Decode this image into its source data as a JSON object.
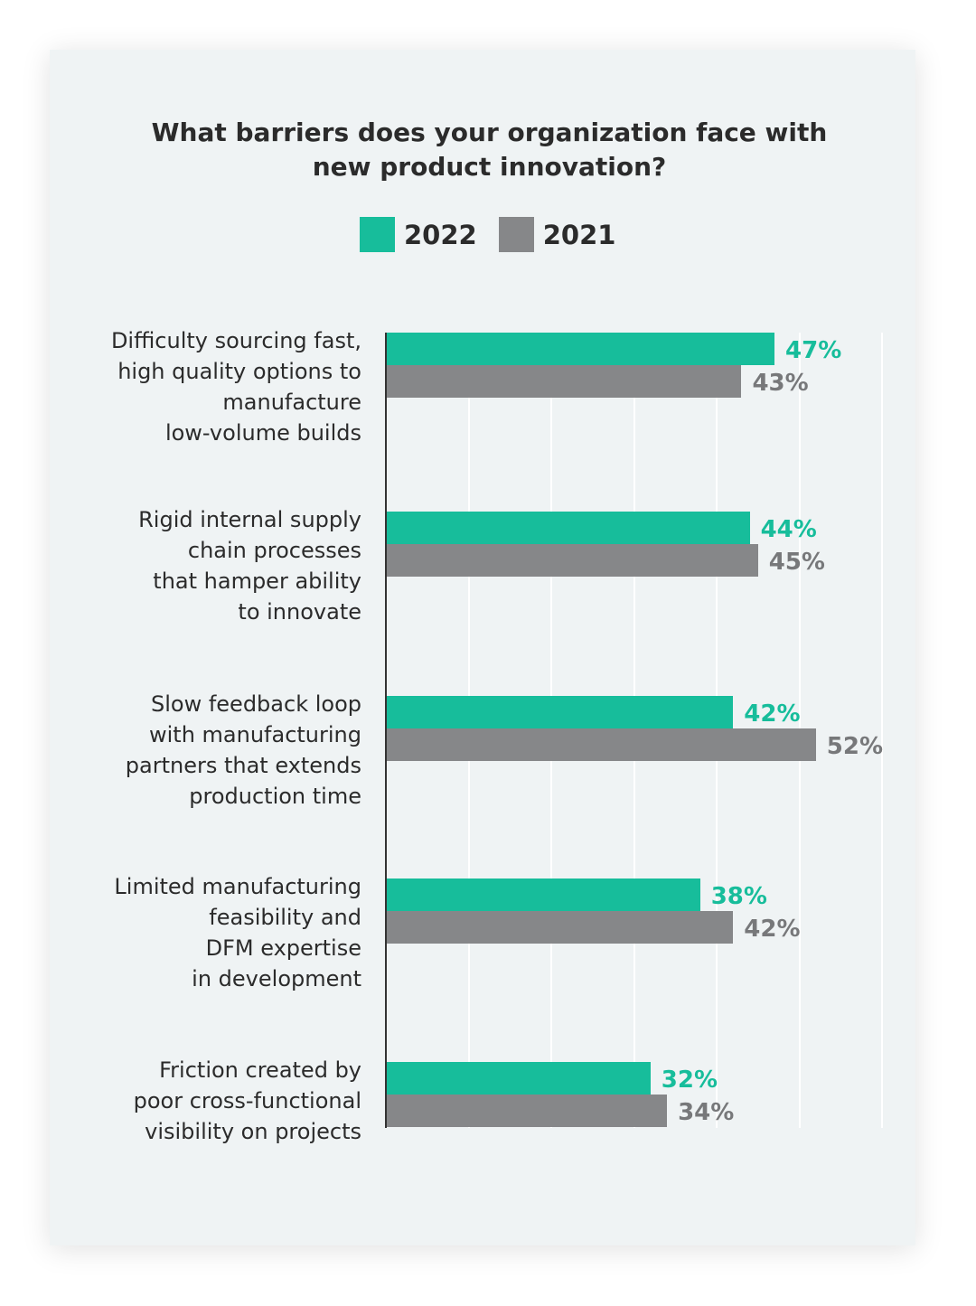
{
  "chart_data": {
    "type": "bar",
    "orientation": "horizontal",
    "title": "What barriers does your organization face with new product innovation?",
    "title_lines": [
      "What barriers does your organization face with",
      "new product innovation?"
    ],
    "categories": [
      [
        "Difficulty sourcing fast,",
        "high quality options to",
        "manufacture",
        "low-volume builds"
      ],
      [
        "Rigid internal supply",
        "chain processes",
        "that hamper ability",
        "to innovate"
      ],
      [
        "Slow feedback loop",
        "with manufacturing",
        "partners that extends",
        "production time"
      ],
      [
        "Limited manufacturing",
        "feasibility and",
        "DFM expertise",
        "in development"
      ],
      [
        "Friction created by",
        "poor cross-functional",
        "visibility on projects"
      ]
    ],
    "series": [
      {
        "name": "2022",
        "color": "#17bd9b",
        "values": [
          47,
          44,
          42,
          38,
          32
        ],
        "labels": [
          "47%",
          "44%",
          "42%",
          "38%",
          "32%"
        ]
      },
      {
        "name": "2021",
        "color": "#868789",
        "values": [
          43,
          45,
          52,
          42,
          34
        ],
        "labels": [
          "43%",
          "45%",
          "52%",
          "42%",
          "34%"
        ]
      }
    ],
    "xlim": [
      0,
      60
    ],
    "grid": true,
    "legend": "top-center"
  }
}
